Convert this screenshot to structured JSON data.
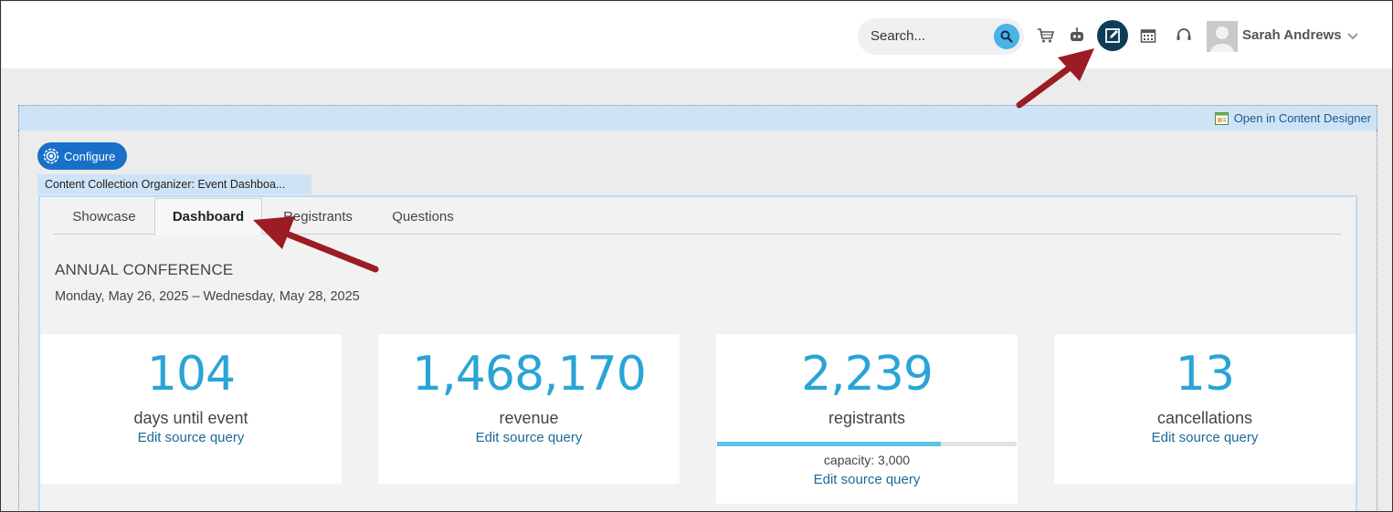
{
  "header": {
    "search_placeholder": "Search...",
    "user_name": "Sarah Andrews",
    "icons": [
      "search-icon",
      "cart-icon",
      "bot-icon",
      "edit-page-icon",
      "calendar-icon",
      "support-icon",
      "avatar-icon",
      "chevron-down-icon"
    ]
  },
  "designer": {
    "open_link": "Open in Content Designer",
    "configure_label": "Configure",
    "collection_label": "Content Collection Organizer: Event Dashboa..."
  },
  "tabs": [
    {
      "label": "Showcase",
      "active": false
    },
    {
      "label": "Dashboard",
      "active": true
    },
    {
      "label": "Registrants",
      "active": false
    },
    {
      "label": "Questions",
      "active": false
    }
  ],
  "event": {
    "title": "ANNUAL CONFERENCE",
    "dates": "Monday, May 26, 2025 – Wednesday, May 28, 2025"
  },
  "cards": [
    {
      "value": "104",
      "label": "days until event",
      "link": "Edit source query"
    },
    {
      "value": "1,468,170",
      "label": "revenue",
      "link": "Edit source query"
    },
    {
      "value": "2,239",
      "label": "registrants",
      "capacity": "capacity: 3,000",
      "progress": 0.746,
      "link": "Edit source query"
    },
    {
      "value": "13",
      "label": "cancellations",
      "link": "Edit source query"
    }
  ],
  "colors": {
    "accent": "#2aa4d6",
    "link": "#1a6a9a",
    "configure_button": "#1870c8",
    "active_icon_bg": "#0f3d57",
    "annotation_arrow": "#9b1c24"
  }
}
